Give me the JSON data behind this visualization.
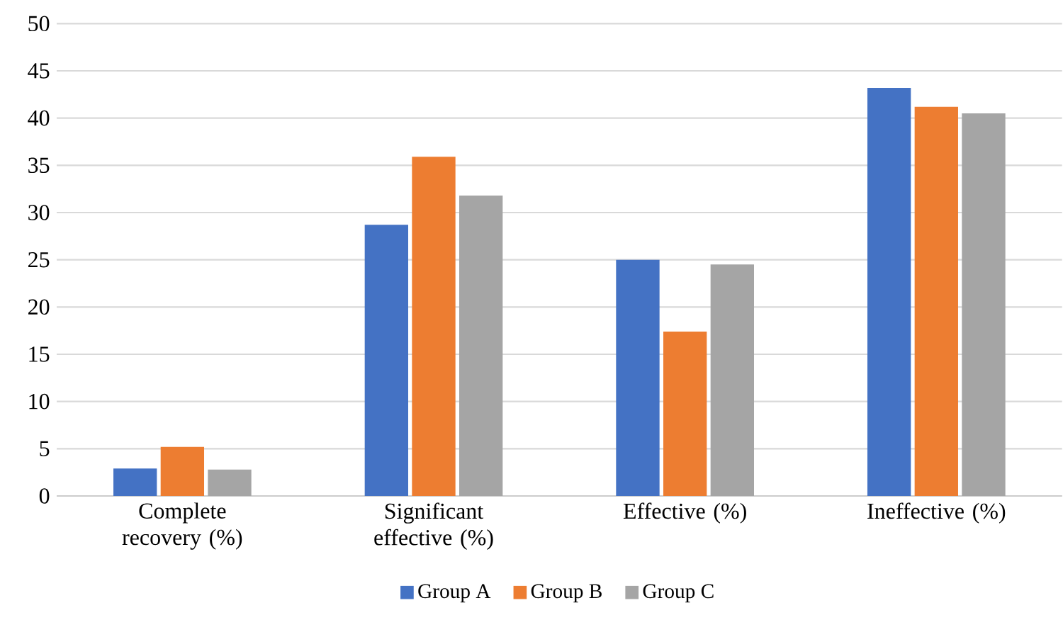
{
  "chart_data": {
    "type": "bar",
    "categories": [
      "Complete recovery (%)",
      "Significant effective (%)",
      "Effective (%)",
      "Ineffective (%)"
    ],
    "series": [
      {
        "name": "Group A",
        "color": "#4472c4",
        "values": [
          2.9,
          28.7,
          25.0,
          43.2
        ]
      },
      {
        "name": "Group B",
        "color": "#ed7d31",
        "values": [
          5.2,
          35.9,
          17.4,
          41.2
        ]
      },
      {
        "name": "Group C",
        "color": "#a5a5a5",
        "values": [
          2.8,
          31.8,
          24.5,
          40.5
        ]
      }
    ],
    "ylim": [
      0,
      50
    ],
    "yticks": [
      0,
      5,
      10,
      15,
      20,
      25,
      30,
      35,
      40,
      45,
      50
    ],
    "grid": "y",
    "legend": "bottom"
  }
}
